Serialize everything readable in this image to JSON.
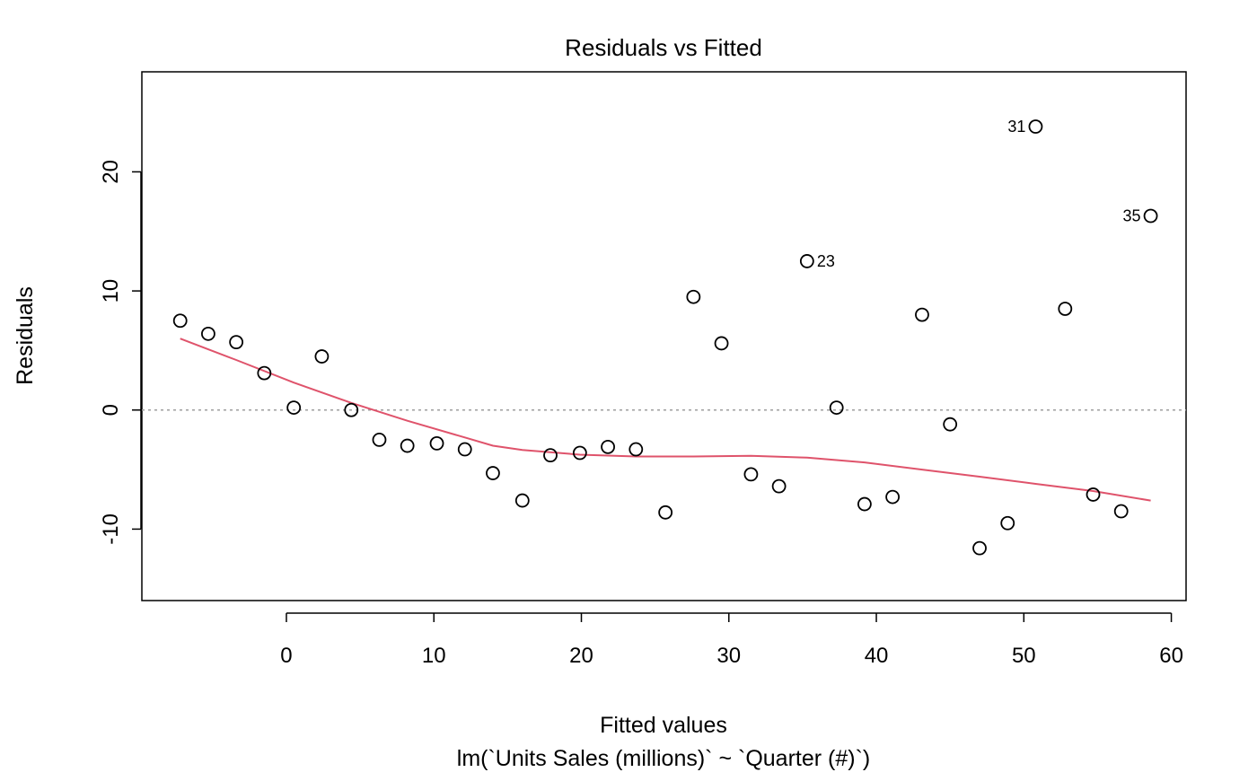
{
  "chart_data": {
    "type": "scatter",
    "title": "Residuals vs Fitted",
    "xlabel": "Fitted values",
    "subtitle": "lm(`Units Sales (millions)` ~ `Quarter (#)`)",
    "ylabel": "Residuals",
    "xlim": [
      -9.8,
      61.0
    ],
    "ylim": [
      -16.0,
      28.4
    ],
    "x_ticks": [
      0,
      10,
      20,
      30,
      40,
      50,
      60
    ],
    "y_ticks": [
      -10,
      0,
      10,
      20
    ],
    "x_tick_labels": [
      "0",
      "10",
      "20",
      "30",
      "40",
      "50",
      "60"
    ],
    "y_tick_labels": [
      "-10",
      "0",
      "10",
      "20"
    ],
    "grid": false,
    "reference_line": {
      "y": 0,
      "style": "dotted",
      "color": "#9e9e9e"
    },
    "colors": {
      "points": "#000000",
      "smooth": "#df536b"
    },
    "points": [
      {
        "x": -7.2,
        "y": 7.5
      },
      {
        "x": -5.3,
        "y": 6.4
      },
      {
        "x": -3.4,
        "y": 5.7
      },
      {
        "x": -1.5,
        "y": 3.1
      },
      {
        "x": 0.5,
        "y": 0.2
      },
      {
        "x": 2.4,
        "y": 4.5
      },
      {
        "x": 4.4,
        "y": 0.0
      },
      {
        "x": 6.3,
        "y": -2.5
      },
      {
        "x": 8.2,
        "y": -3.0
      },
      {
        "x": 10.2,
        "y": -2.8
      },
      {
        "x": 12.1,
        "y": -3.3
      },
      {
        "x": 14.0,
        "y": -5.3
      },
      {
        "x": 16.0,
        "y": -7.6
      },
      {
        "x": 17.9,
        "y": -3.8
      },
      {
        "x": 19.9,
        "y": -3.6
      },
      {
        "x": 21.8,
        "y": -3.1
      },
      {
        "x": 23.7,
        "y": -3.3
      },
      {
        "x": 25.7,
        "y": -8.6
      },
      {
        "x": 27.6,
        "y": 9.5
      },
      {
        "x": 29.5,
        "y": 5.6
      },
      {
        "x": 31.5,
        "y": -5.4
      },
      {
        "x": 33.4,
        "y": -6.4
      },
      {
        "x": 35.3,
        "y": 12.5,
        "label": "23",
        "label_side": "right"
      },
      {
        "x": 37.3,
        "y": 0.2
      },
      {
        "x": 39.2,
        "y": -7.9
      },
      {
        "x": 41.1,
        "y": -7.3
      },
      {
        "x": 43.1,
        "y": 8.0
      },
      {
        "x": 45.0,
        "y": -1.2
      },
      {
        "x": 47.0,
        "y": -11.6
      },
      {
        "x": 48.9,
        "y": -9.5
      },
      {
        "x": 50.8,
        "y": 23.8,
        "label": "31",
        "label_side": "left"
      },
      {
        "x": 52.8,
        "y": 8.5
      },
      {
        "x": 54.7,
        "y": -7.1
      },
      {
        "x": 56.6,
        "y": -8.5
      },
      {
        "x": 58.6,
        "y": 16.3,
        "label": "35",
        "label_side": "left"
      }
    ],
    "smooth_line": [
      {
        "x": -7.2,
        "y": 6.0
      },
      {
        "x": -3.4,
        "y": 4.2
      },
      {
        "x": 0.5,
        "y": 2.3
      },
      {
        "x": 4.4,
        "y": 0.6
      },
      {
        "x": 8.2,
        "y": -0.9
      },
      {
        "x": 12.1,
        "y": -2.3
      },
      {
        "x": 14.0,
        "y": -3.0
      },
      {
        "x": 16.0,
        "y": -3.35
      },
      {
        "x": 19.9,
        "y": -3.75
      },
      {
        "x": 23.7,
        "y": -3.9
      },
      {
        "x": 27.6,
        "y": -3.9
      },
      {
        "x": 31.5,
        "y": -3.85
      },
      {
        "x": 35.3,
        "y": -4.0
      },
      {
        "x": 39.2,
        "y": -4.4
      },
      {
        "x": 43.1,
        "y": -5.0
      },
      {
        "x": 47.0,
        "y": -5.6
      },
      {
        "x": 50.8,
        "y": -6.2
      },
      {
        "x": 54.7,
        "y": -6.8
      },
      {
        "x": 58.6,
        "y": -7.6
      }
    ]
  }
}
